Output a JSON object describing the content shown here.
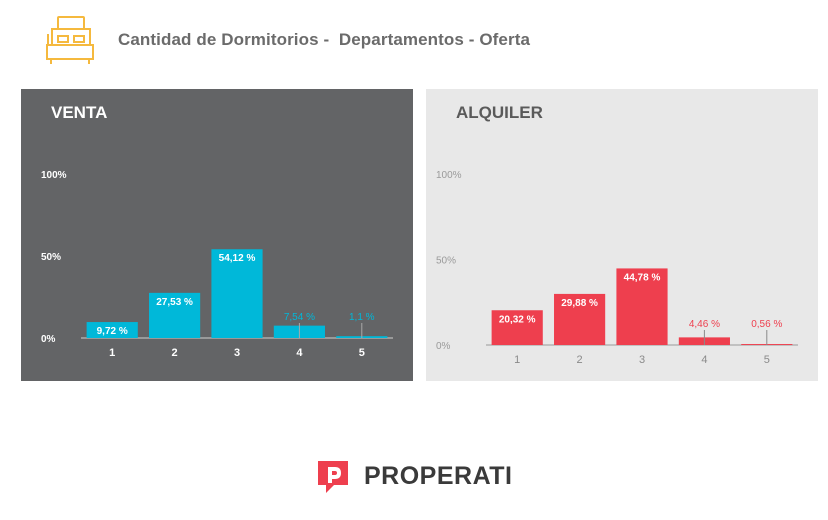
{
  "header": {
    "title": "Cantidad de Dormitorios -  Departamentos - Oferta"
  },
  "footer": {
    "brand": "PROPERATI"
  },
  "colors": {
    "venta_bar": "#00b8d9",
    "alquiler_bar": "#ee3f4e",
    "icon": "#f5b93e"
  },
  "chart_data": [
    {
      "type": "bar",
      "title": "VENTA",
      "categories": [
        "1",
        "2",
        "3",
        "4",
        "5"
      ],
      "values": [
        9.72,
        27.53,
        54.12,
        7.54,
        1.1
      ],
      "value_labels": [
        "9,72 %",
        "27,53 %",
        "54,12 %",
        "7,54 %",
        "1,1 %"
      ],
      "ytick_labels": [
        "0%",
        "50%",
        "100%"
      ],
      "ylim": [
        0,
        100
      ]
    },
    {
      "type": "bar",
      "title": "ALQUILER",
      "categories": [
        "1",
        "2",
        "3",
        "4",
        "5"
      ],
      "values": [
        20.32,
        29.88,
        44.78,
        4.46,
        0.56
      ],
      "value_labels": [
        "20,32 %",
        "29,88 %",
        "44,78 %",
        "4,46 %",
        "0,56 %"
      ],
      "ytick_labels": [
        "0%",
        "50%",
        "100%"
      ],
      "ylim": [
        0,
        100
      ]
    }
  ]
}
